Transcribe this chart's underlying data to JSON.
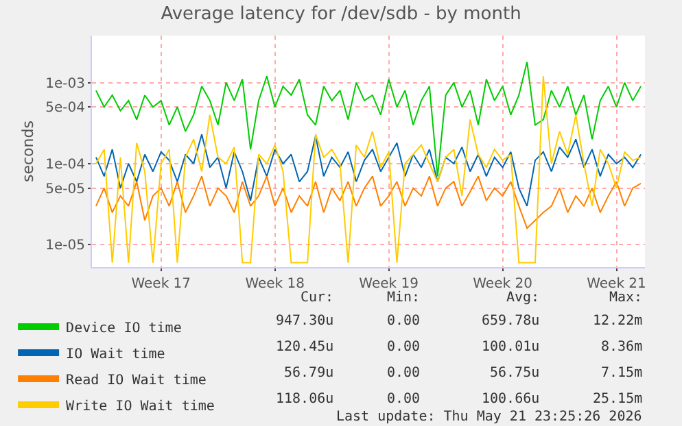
{
  "chart_data": {
    "type": "line",
    "title": "Average latency for /dev/sdb - by month",
    "ylabel": "seconds",
    "log": "y",
    "categories": [
      null,
      null,
      null,
      null,
      null,
      null,
      null,
      null,
      "Week 17",
      null,
      null,
      null,
      null,
      null,
      null,
      null,
      null,
      null,
      null,
      null,
      null,
      null,
      "Week 18",
      null,
      null,
      null,
      null,
      null,
      null,
      null,
      null,
      null,
      null,
      null,
      null,
      null,
      "Week 19",
      null,
      null,
      null,
      null,
      null,
      null,
      null,
      null,
      null,
      null,
      null,
      null,
      null,
      "Week 20",
      null,
      null,
      null,
      null,
      null,
      null,
      null,
      null,
      null,
      null,
      null,
      null,
      null,
      "Week 21",
      null,
      null,
      null
    ],
    "ylim": [
      5.3e-06,
      0.0038
    ],
    "yticks": [
      {
        "value": 1e-05,
        "label": "1e-05"
      },
      {
        "value": 5e-05,
        "label": "5e-05"
      },
      {
        "value": 0.0001,
        "label": "1e-04"
      },
      {
        "value": 0.0005,
        "label": "5e-04"
      },
      {
        "value": 0.001,
        "label": "1e-03"
      }
    ],
    "grid": true,
    "legend": "bottom",
    "line_style": "solid",
    "marker": "none",
    "series": [
      {
        "name": "Device IO time",
        "color": "#00cc00",
        "values": [
          0.0008,
          0.0005,
          0.0007,
          0.00045,
          0.0006,
          0.00035,
          0.0007,
          0.0005,
          0.0006,
          0.0003,
          0.0005,
          0.00025,
          0.0004,
          0.0009,
          0.0006,
          0.0003,
          0.001,
          0.0006,
          0.0011,
          0.00015,
          0.0006,
          0.0012,
          0.0005,
          0.0009,
          0.0007,
          0.0011,
          0.0004,
          0.0003,
          0.0009,
          0.0006,
          0.0008,
          0.00035,
          0.001,
          0.0006,
          0.0007,
          0.0004,
          0.0011,
          0.0005,
          0.0008,
          0.0003,
          0.0006,
          0.0009,
          7e-05,
          0.0007,
          0.001,
          0.0005,
          0.0008,
          0.0003,
          0.0011,
          0.0006,
          0.0009,
          0.0004,
          0.0007,
          0.0018,
          0.0003,
          0.00035,
          0.0008,
          0.0005,
          0.0009,
          0.0004,
          0.0007,
          0.0002,
          0.0006,
          0.0009,
          0.0005,
          0.001,
          0.0006,
          0.0009
        ]
      },
      {
        "name": "IO Wait time",
        "color": "#0066b3",
        "values": [
          0.00012,
          7e-05,
          0.00015,
          5e-05,
          0.0001,
          6e-05,
          0.00013,
          8e-05,
          0.00014,
          0.00011,
          6e-05,
          0.00013,
          0.0001,
          0.00023,
          9e-05,
          0.00012,
          5e-05,
          0.00014,
          8e-05,
          3.5e-05,
          0.00012,
          7e-05,
          0.00015,
          0.0001,
          0.00013,
          6e-05,
          8e-05,
          0.00022,
          7e-05,
          0.00012,
          9e-05,
          0.00014,
          6e-05,
          0.00011,
          0.00015,
          8e-05,
          0.00012,
          0.00018,
          7e-05,
          0.00013,
          9e-05,
          0.00015,
          6e-05,
          0.00012,
          0.0001,
          0.00016,
          8e-05,
          0.00013,
          7e-05,
          0.00012,
          9e-05,
          0.00014,
          5e-05,
          3e-05,
          0.00011,
          0.00014,
          8e-05,
          0.00016,
          0.00012,
          0.0002,
          9e-05,
          0.00015,
          7e-05,
          0.00013,
          0.0001,
          0.00012,
          9e-05,
          0.00013
        ]
      },
      {
        "name": "Read IO Wait time",
        "color": "#ff8000",
        "values": [
          3e-05,
          5e-05,
          2.5e-05,
          4e-05,
          3e-05,
          6e-05,
          2e-05,
          4e-05,
          5e-05,
          3e-05,
          6e-05,
          2.5e-05,
          4e-05,
          7e-05,
          3e-05,
          5e-05,
          4e-05,
          2.5e-05,
          6e-05,
          3e-05,
          4e-05,
          7e-05,
          3e-05,
          5e-05,
          2.5e-05,
          4e-05,
          3e-05,
          6e-05,
          2.5e-05,
          5e-05,
          3.5e-05,
          6e-05,
          3e-05,
          5e-05,
          7e-05,
          3e-05,
          4e-05,
          6e-05,
          3e-05,
          5e-05,
          4e-05,
          7e-05,
          3e-05,
          5e-05,
          6e-05,
          3e-05,
          4.5e-05,
          7e-05,
          3.5e-05,
          5e-05,
          4e-05,
          6e-05,
          3e-05,
          1.6e-05,
          2e-05,
          2.5e-05,
          3e-05,
          5e-05,
          2.5e-05,
          4e-05,
          3e-05,
          5e-05,
          2.5e-05,
          4e-05,
          6e-05,
          3e-05,
          5e-05,
          5.7e-05
        ]
      },
      {
        "name": "Write IO Wait time",
        "color": "#ffcc00",
        "values": [
          0.0001,
          0.00015,
          6e-06,
          0.00012,
          6e-06,
          0.00018,
          8e-05,
          6e-06,
          0.0001,
          0.00015,
          6e-06,
          0.00012,
          0.0002,
          8e-05,
          0.0004,
          0.00012,
          0.0001,
          0.00016,
          6e-06,
          6e-06,
          0.00013,
          0.0001,
          0.00017,
          8e-05,
          6e-06,
          6e-06,
          6e-06,
          0.00023,
          0.00012,
          0.00015,
          0.0001,
          6e-06,
          0.00017,
          0.00012,
          0.00025,
          9e-05,
          0.00014,
          6e-06,
          0.0001,
          0.00013,
          0.00017,
          0.0001,
          6e-05,
          0.00012,
          0.00015,
          4e-05,
          0.00035,
          0.00013,
          9e-05,
          0.00015,
          0.00011,
          0.00013,
          6e-06,
          6e-06,
          6e-06,
          0.0012,
          0.0001,
          0.00025,
          0.00013,
          0.0004,
          0.0001,
          3e-05,
          0.00015,
          0.0001,
          5e-05,
          0.00014,
          0.00011,
          0.00012
        ]
      }
    ],
    "annotations": [
      "Cur:",
      "Min:",
      "Avg:",
      "Max:",
      "947.30u",
      "0.00",
      "659.78u",
      "12.22m",
      "120.45u",
      "0.00",
      "100.01u",
      "8.36m",
      "56.79u",
      "0.00",
      "56.75u",
      "7.15m",
      "118.06u",
      "0.00",
      "100.66u",
      "25.15m",
      "Last update: Thu May 21 23:25:26 2026"
    ]
  }
}
